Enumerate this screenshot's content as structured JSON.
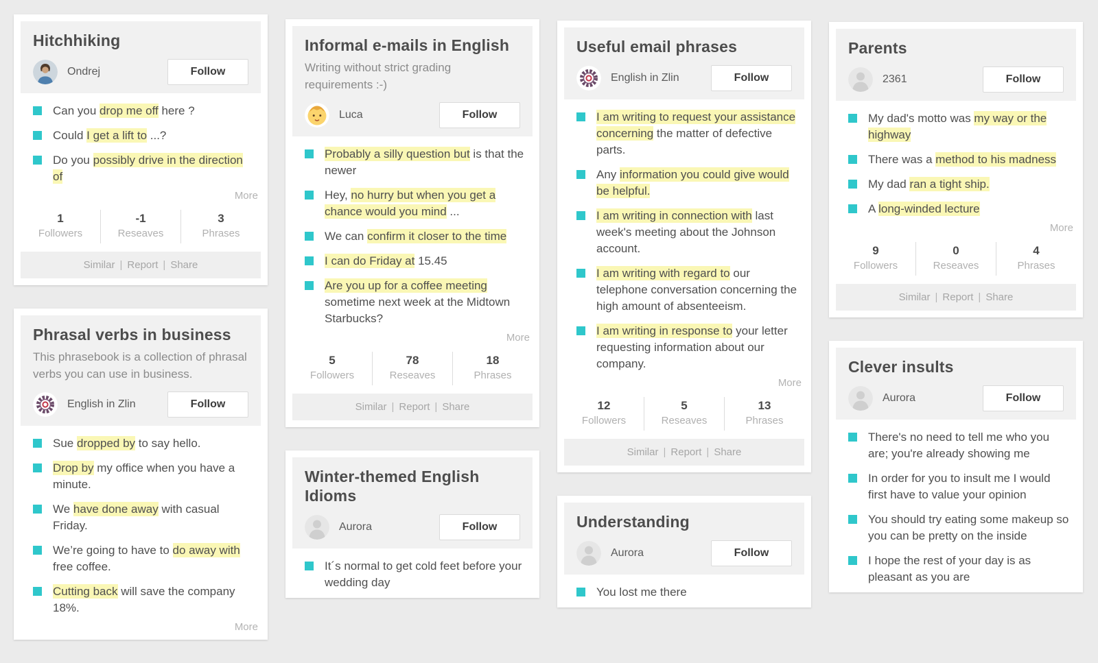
{
  "labels": {
    "follow": "Follow",
    "more": "More",
    "followers": "Followers",
    "reseaves": "Reseaves",
    "phrases": "Phrases",
    "separator": "|",
    "footer_links": [
      "Similar",
      "Report",
      "Share"
    ]
  },
  "colors": {
    "page_background": "#ebebeb",
    "card_background": "#ffffff",
    "header_background": "#f1f1f1",
    "footer_background": "#efefef",
    "highlight": "#faf7b5",
    "bullet": "#2fc7cb",
    "title_text": "#4d4d4d",
    "phrase_text": "#4f4f4f",
    "muted_text": "#b0b0b0"
  },
  "cards": [
    {
      "column": 1,
      "title": "Hitchhiking",
      "author": {
        "name": "Ondrej",
        "avatar": "user-photo"
      },
      "phrases": [
        {
          "segments": [
            [
              "Can you ",
              false
            ],
            [
              "drop me off",
              true
            ],
            [
              " here ?",
              false
            ]
          ]
        },
        {
          "segments": [
            [
              "Could ",
              false
            ],
            [
              "I get a lift to",
              true
            ],
            [
              " ...?",
              false
            ]
          ]
        },
        {
          "segments": [
            [
              "Do you ",
              false
            ],
            [
              "possibly drive in the direction of",
              true
            ]
          ]
        }
      ],
      "more": true,
      "stats": {
        "followers": "1",
        "reseaves": "-1",
        "phrases": "3"
      },
      "footer": true
    },
    {
      "column": 1,
      "title": "Phrasal verbs in business",
      "description": "This phrasebook is a collection of phrasal verbs you can use in business.",
      "author": {
        "name": "English in Zlin",
        "avatar": "gear-logo"
      },
      "phrases": [
        {
          "segments": [
            [
              "Sue ",
              false
            ],
            [
              "dropped by",
              true
            ],
            [
              " to say hello.",
              false
            ]
          ]
        },
        {
          "segments": [
            [
              "Drop by",
              true
            ],
            [
              " my office when you have a minute.",
              false
            ]
          ]
        },
        {
          "segments": [
            [
              "We ",
              false
            ],
            [
              "have done away",
              true
            ],
            [
              " with casual Friday.",
              false
            ]
          ]
        },
        {
          "segments": [
            [
              "We’re going to have to ",
              false
            ],
            [
              "do away with",
              true
            ],
            [
              " free coffee.",
              false
            ]
          ]
        },
        {
          "segments": [
            [
              "Cutting back",
              true
            ],
            [
              " will save the company 18%.",
              false
            ]
          ]
        }
      ],
      "more": true
    },
    {
      "column": 2,
      "title": "Informal e-mails in English",
      "description": "Writing without strict grading requirements :-)",
      "author": {
        "name": "Luca",
        "avatar": "baby"
      },
      "phrases": [
        {
          "segments": [
            [
              "Probably a silly question but",
              true
            ],
            [
              " is that the newer",
              false
            ]
          ]
        },
        {
          "segments": [
            [
              "Hey, ",
              false
            ],
            [
              "no hurry but when you get a chance would you mind",
              true
            ],
            [
              " ...",
              false
            ]
          ]
        },
        {
          "segments": [
            [
              "We can ",
              false
            ],
            [
              "confirm it closer to the time",
              true
            ]
          ]
        },
        {
          "segments": [
            [
              "I can do Friday at",
              true
            ],
            [
              " 15.45",
              false
            ]
          ]
        },
        {
          "segments": [
            [
              "Are you up for a coffee meeting",
              true
            ],
            [
              " sometime next week at the Midtown Starbucks?",
              false
            ]
          ]
        }
      ],
      "more": true,
      "stats": {
        "followers": "5",
        "reseaves": "78",
        "phrases": "18"
      },
      "footer": true
    },
    {
      "column": 2,
      "title": "Winter-themed English Idioms",
      "author": {
        "name": "Aurora",
        "avatar": "person-silhouette"
      },
      "phrases": [
        {
          "segments": [
            [
              "It´s normal to get cold feet before your wedding day",
              false
            ]
          ]
        }
      ]
    },
    {
      "column": 3,
      "title": "Useful email phrases",
      "author": {
        "name": "English in Zlin",
        "avatar": "gear-logo"
      },
      "phrases": [
        {
          "segments": [
            [
              "I am writing to request your assistance concerning",
              true
            ],
            [
              " the matter of defective parts.",
              false
            ]
          ]
        },
        {
          "segments": [
            [
              "Any ",
              false
            ],
            [
              "information you could give would be helpful.",
              true
            ]
          ]
        },
        {
          "segments": [
            [
              "I am writing in connection with",
              true
            ],
            [
              " last week's meeting about the Johnson account.",
              false
            ]
          ]
        },
        {
          "segments": [
            [
              "I am writing with regard to",
              true
            ],
            [
              " our telephone conversation concerning the high amount of absenteeism.",
              false
            ]
          ]
        },
        {
          "segments": [
            [
              "I am writing in response to",
              true
            ],
            [
              " your letter requesting information about our company.",
              false
            ]
          ]
        }
      ],
      "more": true,
      "stats": {
        "followers": "12",
        "reseaves": "5",
        "phrases": "13"
      },
      "footer": true
    },
    {
      "column": 3,
      "title": "Understanding",
      "author": {
        "name": "Aurora",
        "avatar": "person-silhouette"
      },
      "phrases": [
        {
          "segments": [
            [
              "You lost me there",
              false
            ]
          ]
        }
      ]
    },
    {
      "column": 4,
      "title": "Parents",
      "author": {
        "name": "2361",
        "avatar": "person-silhouette"
      },
      "phrases": [
        {
          "segments": [
            [
              "My dad's motto was ",
              false
            ],
            [
              "my way or the highway",
              true
            ]
          ]
        },
        {
          "segments": [
            [
              "There was a ",
              false
            ],
            [
              "method to his madness",
              true
            ]
          ]
        },
        {
          "segments": [
            [
              "My dad ",
              false
            ],
            [
              "ran a tight ship.",
              true
            ]
          ]
        },
        {
          "segments": [
            [
              "A ",
              false
            ],
            [
              "long-winded lecture",
              true
            ]
          ]
        }
      ],
      "more": true,
      "stats": {
        "followers": "9",
        "reseaves": "0",
        "phrases": "4"
      },
      "footer": true
    },
    {
      "column": 4,
      "title": "Clever insults",
      "author": {
        "name": "Aurora",
        "avatar": "person-silhouette"
      },
      "phrases": [
        {
          "segments": [
            [
              "There's no need to tell me who you are; you're already showing me",
              false
            ]
          ]
        },
        {
          "segments": [
            [
              "In order for you to insult me I would first have to value your opinion",
              false
            ]
          ]
        },
        {
          "segments": [
            [
              "You should try eating some makeup so you can be pretty on the inside",
              false
            ]
          ]
        },
        {
          "segments": [
            [
              "I hope the rest of your day is as pleasant as you are",
              false
            ]
          ]
        }
      ]
    }
  ]
}
